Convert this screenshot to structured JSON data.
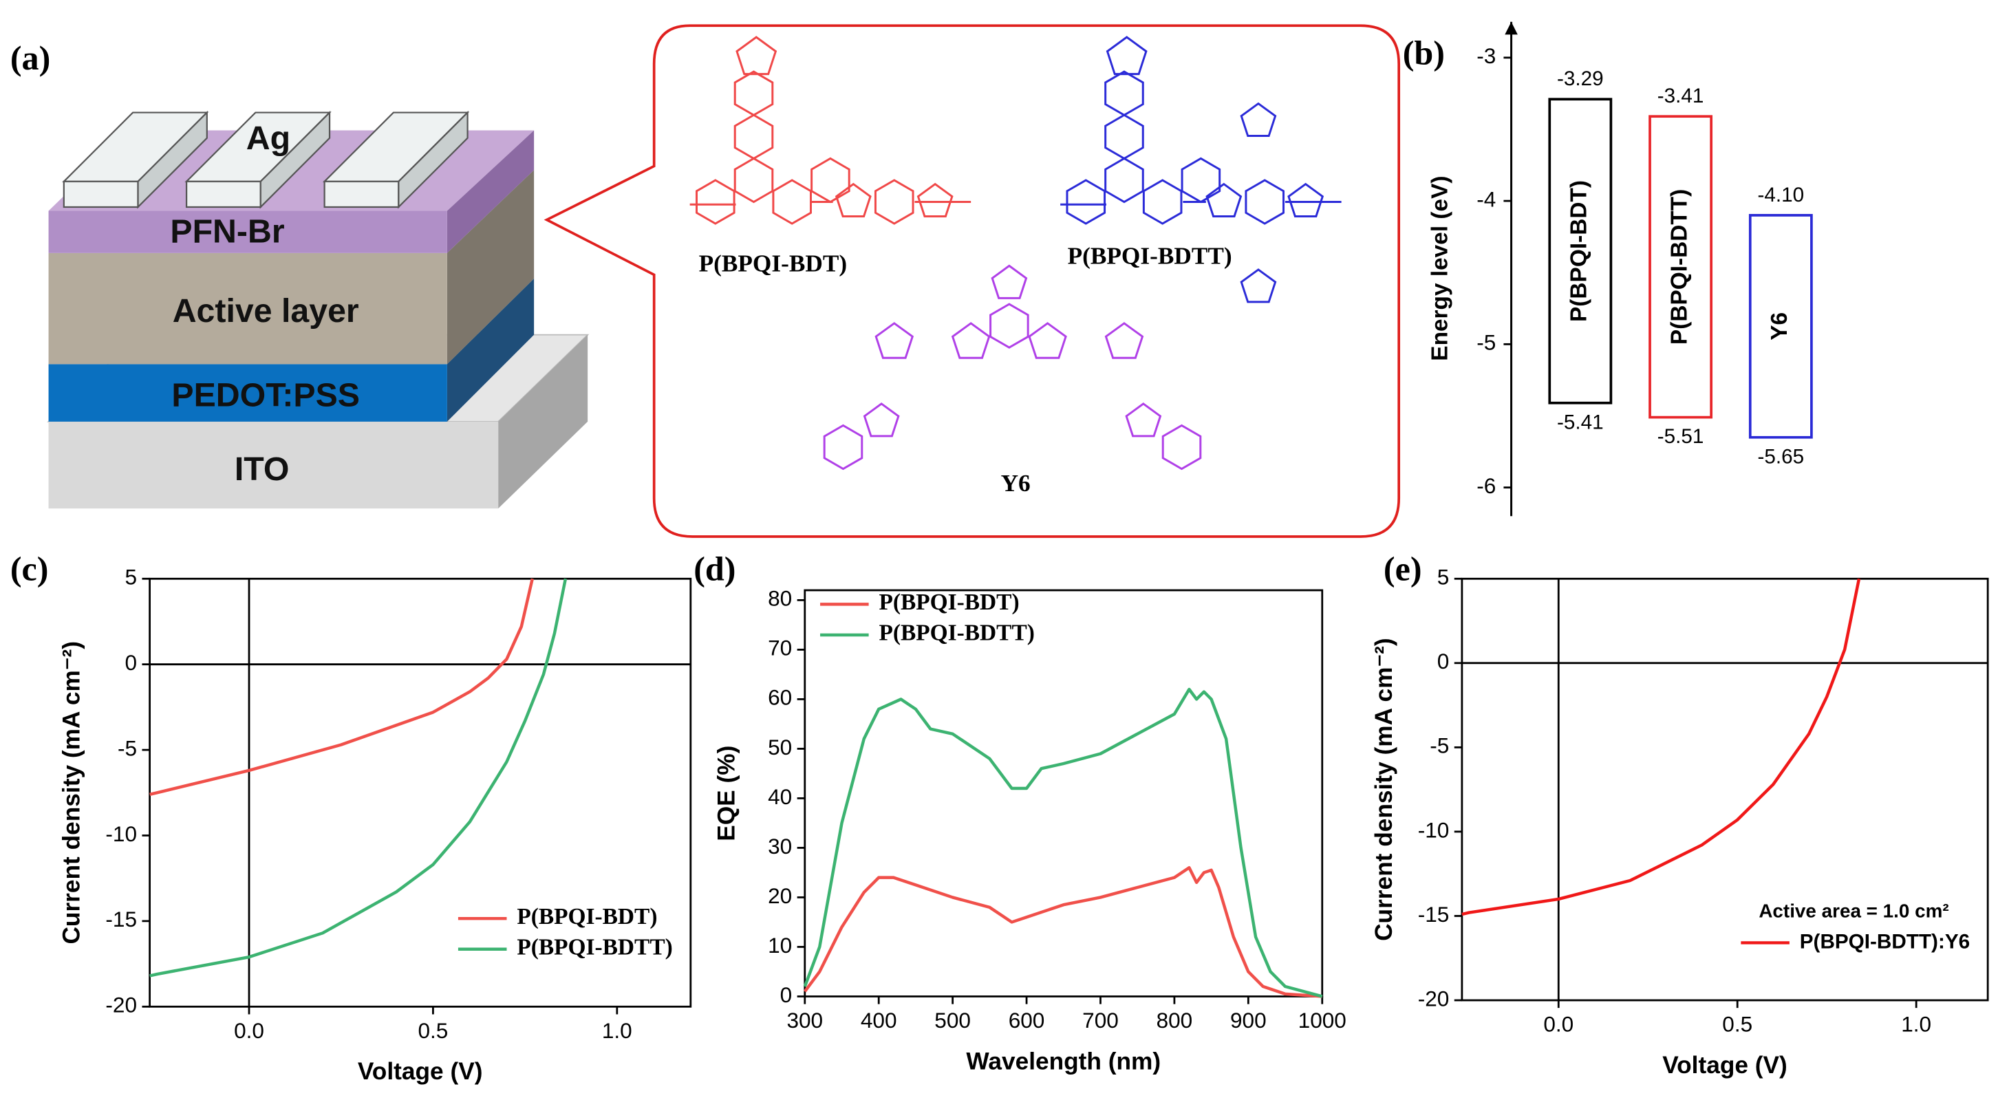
{
  "panel_labels": [
    "(a)",
    "(b)",
    "(c)",
    "(d)",
    "(e)"
  ],
  "device": {
    "layers": [
      "Ag",
      "PFN-Br",
      "Active layer",
      "PEDOT:PSS",
      "ITO"
    ]
  },
  "molecules": {
    "names": [
      "P(BPQI-BDT)",
      "P(BPQI-BDTT)",
      "Y6"
    ]
  },
  "chart_data": [
    {
      "type": "energy_level",
      "ylabel": "Energy level (eV)",
      "categories": [
        "P(BPQI-BDT)",
        "P(BPQI-BDTT)",
        "Y6"
      ],
      "colors": [
        "#000000",
        "#e8262a",
        "#2a2ad6"
      ],
      "series": [
        {
          "values": [
            -3.29,
            -3.41,
            -4.1
          ],
          "value_labels": [
            "-3.29",
            "-3.41",
            "-4.10"
          ]
        },
        {
          "values": [
            -5.41,
            -5.51,
            -5.65
          ],
          "value_labels": [
            "-5.41",
            "-5.51",
            "-5.65"
          ]
        }
      ],
      "ylim": [
        -6.2,
        -2.75
      ],
      "yticks": [
        -3,
        -4,
        -5,
        -6
      ]
    },
    {
      "type": "line",
      "xlabel": "Voltage (V)",
      "ylabel": "Current density (mA cm⁻²)",
      "xlim": [
        -0.27,
        1.2
      ],
      "ylim": [
        -20,
        5
      ],
      "xticks": [
        {
          "value": 0,
          "label": "0.0"
        },
        {
          "value": 0.5,
          "label": "0.5"
        },
        {
          "value": 1,
          "label": "1.0"
        }
      ],
      "yticks": [
        5,
        0,
        -5,
        -10,
        -15,
        -20
      ],
      "zero_lines": true,
      "legend": "lower right",
      "legend_font": "serif",
      "series": [
        {
          "name": "P(BPQI-BDT)",
          "color": "#f0504a",
          "x": [
            -0.27,
            -0.25,
            0,
            0.25,
            0.5,
            0.6,
            0.65,
            0.7,
            0.74,
            0.77
          ],
          "values": [
            -7.6,
            -7.5,
            -6.2,
            -4.7,
            -2.8,
            -1.6,
            -0.8,
            0.3,
            2.2,
            5
          ]
        },
        {
          "name": "P(BPQI-BDTT)",
          "color": "#3cb371",
          "x": [
            -0.27,
            -0.25,
            0,
            0.2,
            0.4,
            0.5,
            0.6,
            0.7,
            0.75,
            0.8,
            0.83,
            0.86
          ],
          "values": [
            -18.2,
            -18.1,
            -17.1,
            -15.7,
            -13.3,
            -11.7,
            -9.2,
            -5.7,
            -3.3,
            -0.6,
            1.8,
            5
          ]
        }
      ]
    },
    {
      "type": "line",
      "xlabel": "Wavelength (nm)",
      "ylabel": "EQE (%)",
      "xlim": [
        300,
        1000
      ],
      "ylim": [
        0,
        82
      ],
      "xticks": [
        300,
        400,
        500,
        600,
        700,
        800,
        900,
        1000
      ],
      "yticks": [
        0,
        10,
        20,
        30,
        40,
        50,
        60,
        70,
        80
      ],
      "legend": "upper left",
      "legend_font": "serif",
      "series": [
        {
          "name": "P(BPQI-BDT)",
          "color": "#f0504a",
          "x": [
            300,
            320,
            350,
            380,
            400,
            420,
            450,
            500,
            550,
            580,
            600,
            650,
            700,
            750,
            800,
            820,
            830,
            840,
            850,
            860,
            880,
            900,
            920,
            950,
            1000
          ],
          "values": [
            1,
            5,
            14,
            21,
            24,
            24,
            22.5,
            20,
            18,
            15,
            16,
            18.5,
            20,
            22,
            24,
            26,
            23,
            25,
            25.5,
            22,
            12,
            5,
            2,
            0.5,
            0
          ]
        },
        {
          "name": "P(BPQI-BDTT)",
          "color": "#3cb371",
          "x": [
            300,
            320,
            350,
            380,
            400,
            430,
            450,
            470,
            500,
            550,
            580,
            600,
            620,
            650,
            700,
            750,
            800,
            820,
            830,
            840,
            850,
            870,
            890,
            910,
            930,
            950,
            1000
          ],
          "values": [
            2,
            10,
            35,
            52,
            58,
            60,
            58,
            54,
            53,
            48,
            42,
            42,
            46,
            47,
            49,
            53,
            57,
            62,
            60,
            61.5,
            60,
            52,
            30,
            12,
            5,
            2,
            0
          ]
        }
      ]
    },
    {
      "type": "line",
      "xlabel": "Voltage (V)",
      "ylabel": "Current density (mA cm⁻²)",
      "xlim": [
        -0.27,
        1.2
      ],
      "ylim": [
        -20,
        5
      ],
      "xticks": [
        {
          "value": 0,
          "label": "0.0"
        },
        {
          "value": 0.5,
          "label": "0.5"
        },
        {
          "value": 1,
          "label": "1.0"
        }
      ],
      "yticks": [
        5,
        0,
        -5,
        -10,
        -15,
        -20
      ],
      "zero_lines": true,
      "legend": "lower right",
      "legend_font": "sans",
      "annotation": "Active area = 1.0 cm²",
      "series": [
        {
          "name": "P(BPQI-BDTT):Y6",
          "color": "#f01818",
          "x": [
            -0.27,
            -0.25,
            0,
            0.2,
            0.4,
            0.5,
            0.6,
            0.7,
            0.75,
            0.8,
            0.84
          ],
          "values": [
            -14.9,
            -14.8,
            -14,
            -12.9,
            -10.8,
            -9.3,
            -7.2,
            -4.2,
            -2,
            0.8,
            5
          ]
        }
      ]
    }
  ]
}
